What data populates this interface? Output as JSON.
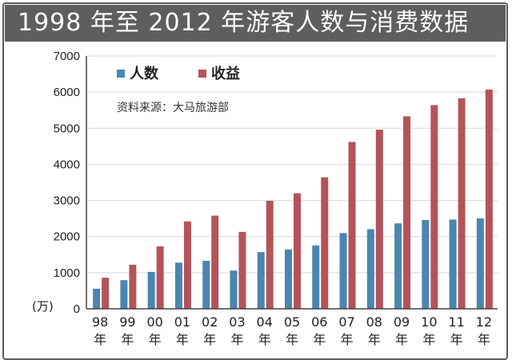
{
  "title": "1998 年至 2012 年游客人数与消费数据",
  "source_note": "资料来源：大马旅游部",
  "unit_label": "(万)",
  "colors": {
    "people": "#4a86b0",
    "revenue": "#b4545a",
    "title_bg": "#5e5e5e"
  },
  "chart_data": {
    "type": "bar",
    "categories": [
      [
        "98",
        "年"
      ],
      [
        "99",
        "年"
      ],
      [
        "00",
        "年"
      ],
      [
        "01",
        "年"
      ],
      [
        "02",
        "年"
      ],
      [
        "03",
        "年"
      ],
      [
        "04",
        "年"
      ],
      [
        "05",
        "年"
      ],
      [
        "06",
        "年"
      ],
      [
        "07",
        "年"
      ],
      [
        "08",
        "年"
      ],
      [
        "09",
        "年"
      ],
      [
        "10",
        "年"
      ],
      [
        "11",
        "年"
      ],
      [
        "12",
        "年"
      ]
    ],
    "series": [
      {
        "name": "人数",
        "values": [
          556,
          793,
          1022,
          1278,
          1329,
          1058,
          1570,
          1643,
          1755,
          2097,
          2205,
          2365,
          2458,
          2471,
          2503
        ]
      },
      {
        "name": "收益",
        "values": [
          860,
          1220,
          1730,
          2420,
          2580,
          2130,
          2990,
          3200,
          3640,
          4620,
          4960,
          5330,
          5640,
          5830,
          6070
        ]
      }
    ],
    "y_ticks": [
      "0",
      "1000",
      "2000",
      "3000",
      "4000",
      "5000",
      "6000",
      "7000"
    ],
    "ylim": [
      0,
      7000
    ],
    "grid": true,
    "legend_position": "top-left"
  }
}
